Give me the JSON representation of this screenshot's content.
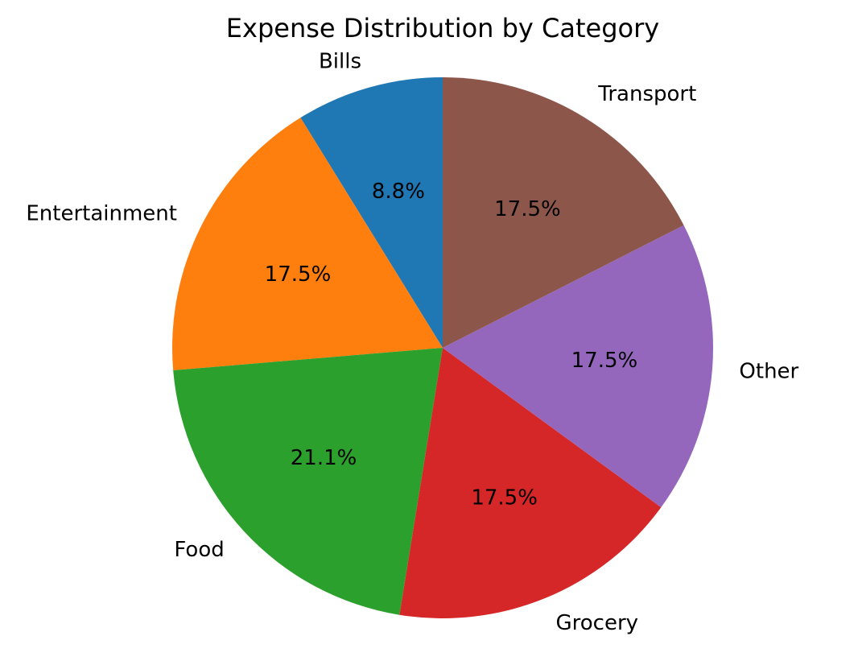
{
  "chart_data": {
    "type": "pie",
    "title": "Expense Distribution by Category",
    "start_angle_deg": 90,
    "direction": "counterclockwise",
    "slices": [
      {
        "label": "Bills",
        "value": 8.8,
        "pct_label": "8.8%",
        "color": "#1f77b4"
      },
      {
        "label": "Entertainment",
        "value": 17.5,
        "pct_label": "17.5%",
        "color": "#ff7f0e"
      },
      {
        "label": "Food",
        "value": 21.1,
        "pct_label": "21.1%",
        "color": "#2ca02c"
      },
      {
        "label": "Grocery",
        "value": 17.5,
        "pct_label": "17.5%",
        "color": "#d62728"
      },
      {
        "label": "Other",
        "value": 17.5,
        "pct_label": "17.5%",
        "color": "#9467bd"
      },
      {
        "label": "Transport",
        "value": 17.5,
        "pct_label": "17.5%",
        "color": "#8c564b"
      }
    ],
    "legend": "none"
  }
}
